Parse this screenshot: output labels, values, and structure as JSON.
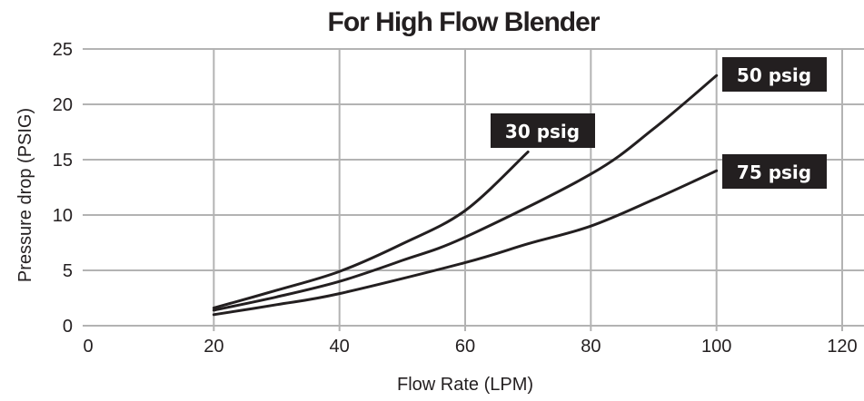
{
  "chart_data": {
    "type": "line",
    "title": "For High Flow Blender",
    "xlabel": "Flow Rate (LPM)",
    "ylabel": "Pressure drop (PSIG)",
    "xlim": [
      0,
      120
    ],
    "ylim": [
      0,
      25
    ],
    "xticks": [
      0,
      20,
      40,
      60,
      80,
      100,
      120
    ],
    "yticks": [
      0,
      5,
      10,
      15,
      20,
      25
    ],
    "grid": true,
    "line_color": "#231f20",
    "grid_color": "#b3b3b3",
    "label_box_color": "#231f20",
    "series": [
      {
        "name": "30 psig",
        "x": [
          20,
          30,
          40,
          50,
          60,
          70
        ],
        "y": [
          1.6,
          3.2,
          4.9,
          7.4,
          10.4,
          15.7
        ]
      },
      {
        "name": "50 psig",
        "x": [
          20,
          30,
          40,
          50,
          60,
          80,
          90,
          100
        ],
        "y": [
          1.4,
          2.6,
          4.0,
          5.9,
          8.0,
          13.7,
          17.8,
          22.6
        ]
      },
      {
        "name": "75 psig",
        "x": [
          20,
          30,
          40,
          60,
          70,
          80,
          90,
          100
        ],
        "y": [
          1.0,
          1.9,
          2.9,
          5.7,
          7.4,
          9.0,
          11.4,
          14.0
        ]
      }
    ]
  }
}
